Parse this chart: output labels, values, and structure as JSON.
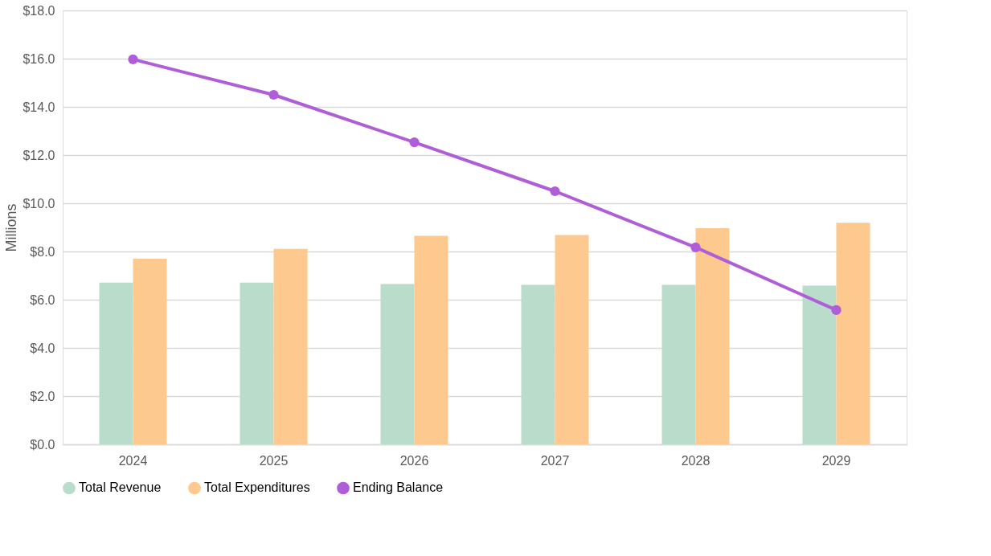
{
  "chart_data": {
    "type": "bar",
    "ylabel": "Millions",
    "categories": [
      "2024",
      "2025",
      "2026",
      "2027",
      "2028",
      "2029"
    ],
    "series": [
      {
        "name": "Total Revenue",
        "color": "#b9dccb",
        "values": [
          6.71,
          6.71,
          6.65,
          6.62,
          6.62,
          6.58
        ]
      },
      {
        "name": "Total Expenditures",
        "color": "#fdc98e",
        "values": [
          7.7,
          8.11,
          8.65,
          8.68,
          8.97,
          9.19
        ]
      },
      {
        "name": "Ending Balance",
        "type": "line",
        "color": "#b05ed8",
        "marker": "circle",
        "values": [
          15.97,
          14.5,
          12.53,
          10.5,
          8.17,
          5.57
        ]
      }
    ],
    "ylim": [
      0,
      18
    ],
    "yticks": [
      {
        "value": 0,
        "label": "$0.0"
      },
      {
        "value": 2,
        "label": "$2.0"
      },
      {
        "value": 4,
        "label": "$4.0"
      },
      {
        "value": 6,
        "label": "$6.0"
      },
      {
        "value": 8,
        "label": "$8.0"
      },
      {
        "value": 10,
        "label": "$10.0"
      },
      {
        "value": 12,
        "label": "$12.0"
      },
      {
        "value": 14,
        "label": "$14.0"
      },
      {
        "value": 16,
        "label": "$16.0"
      },
      {
        "value": 18,
        "label": "$18.0"
      }
    ],
    "grid": "y",
    "legend": "bottom"
  }
}
